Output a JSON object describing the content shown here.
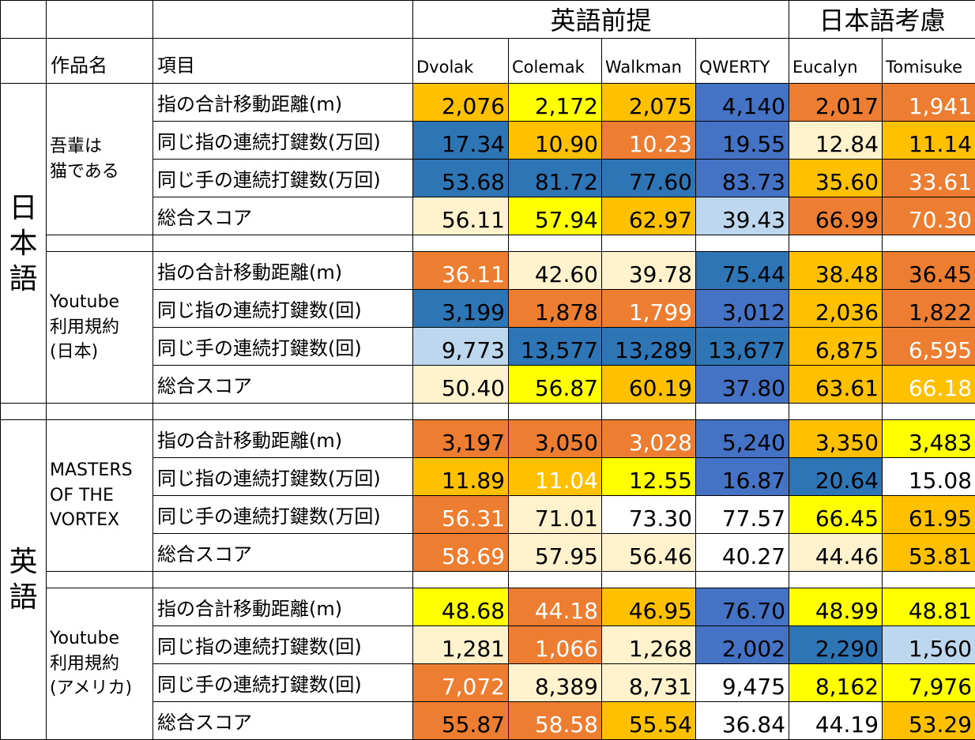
{
  "header": {
    "group_english": "英語前提",
    "group_japanese": "日本語考慮",
    "work_label": "作品名",
    "item_label": "項目",
    "layouts": [
      "Dvolak",
      "Colemak",
      "Walkman",
      "QWERTY",
      "Eucalyn",
      "Tomisuke"
    ]
  },
  "languages": {
    "japanese": "日本語",
    "english": "英語"
  },
  "sections": [
    {
      "work_lines": [
        "吾輩は",
        "猫である"
      ],
      "rows": [
        {
          "item": "指の合計移動距離(m)",
          "cells": [
            {
              "v": "2,076",
              "bg": "#ffc000",
              "fg": "#000000"
            },
            {
              "v": "2,172",
              "bg": "#ffff00",
              "fg": "#000000"
            },
            {
              "v": "2,075",
              "bg": "#ffc000",
              "fg": "#000000"
            },
            {
              "v": "4,140",
              "bg": "#4472c4",
              "fg": "#000000"
            },
            {
              "v": "2,017",
              "bg": "#ed7d31",
              "fg": "#000000"
            },
            {
              "v": "1,941",
              "bg": "#ed7d31",
              "fg": "#ffffff"
            }
          ]
        },
        {
          "item": "同じ指の連続打鍵数(万回)",
          "cells": [
            {
              "v": "17.34",
              "bg": "#2e75b6",
              "fg": "#000000"
            },
            {
              "v": "10.90",
              "bg": "#ffc000",
              "fg": "#000000"
            },
            {
              "v": "10.23",
              "bg": "#ed7d31",
              "fg": "#ffffff"
            },
            {
              "v": "19.55",
              "bg": "#4472c4",
              "fg": "#000000"
            },
            {
              "v": "12.84",
              "bg": "#fff2cc",
              "fg": "#000000"
            },
            {
              "v": "11.14",
              "bg": "#ffc000",
              "fg": "#000000"
            }
          ]
        },
        {
          "item": "同じ手の連続打鍵数(万回)",
          "cells": [
            {
              "v": "53.68",
              "bg": "#2e75b6",
              "fg": "#000000"
            },
            {
              "v": "81.72",
              "bg": "#2e75b6",
              "fg": "#000000"
            },
            {
              "v": "77.60",
              "bg": "#2e75b6",
              "fg": "#000000"
            },
            {
              "v": "83.73",
              "bg": "#4472c4",
              "fg": "#000000"
            },
            {
              "v": "35.60",
              "bg": "#ffc000",
              "fg": "#000000"
            },
            {
              "v": "33.61",
              "bg": "#ed7d31",
              "fg": "#ffffff"
            }
          ]
        },
        {
          "item": "総合スコア",
          "cells": [
            {
              "v": "56.11",
              "bg": "#fff2cc",
              "fg": "#000000"
            },
            {
              "v": "57.94",
              "bg": "#ffff00",
              "fg": "#000000"
            },
            {
              "v": "62.97",
              "bg": "#ffc000",
              "fg": "#000000"
            },
            {
              "v": "39.43",
              "bg": "#bdd7ee",
              "fg": "#000000"
            },
            {
              "v": "66.99",
              "bg": "#ed7d31",
              "fg": "#000000"
            },
            {
              "v": "70.30",
              "bg": "#ed7d31",
              "fg": "#ffffff"
            }
          ]
        }
      ]
    },
    {
      "work_lines": [
        "Youtube",
        "利用規約",
        "(日本)"
      ],
      "rows": [
        {
          "item": "指の合計移動距離(m)",
          "cells": [
            {
              "v": "36.11",
              "bg": "#ed7d31",
              "fg": "#ffffff"
            },
            {
              "v": "42.60",
              "bg": "#fff2cc",
              "fg": "#000000"
            },
            {
              "v": "39.78",
              "bg": "#fff2cc",
              "fg": "#000000"
            },
            {
              "v": "75.44",
              "bg": "#2e75b6",
              "fg": "#000000"
            },
            {
              "v": "38.48",
              "bg": "#ffc000",
              "fg": "#000000"
            },
            {
              "v": "36.45",
              "bg": "#ed7d31",
              "fg": "#000000"
            }
          ]
        },
        {
          "item": "同じ指の連続打鍵数(回)",
          "cells": [
            {
              "v": "3,199",
              "bg": "#2e75b6",
              "fg": "#000000"
            },
            {
              "v": "1,878",
              "bg": "#ed7d31",
              "fg": "#000000"
            },
            {
              "v": "1,799",
              "bg": "#ed7d31",
              "fg": "#ffffff"
            },
            {
              "v": "3,012",
              "bg": "#4472c4",
              "fg": "#000000"
            },
            {
              "v": "2,036",
              "bg": "#ffc000",
              "fg": "#000000"
            },
            {
              "v": "1,822",
              "bg": "#ed7d31",
              "fg": "#000000"
            }
          ]
        },
        {
          "item": "同じ手の連続打鍵数(回)",
          "cells": [
            {
              "v": "9,773",
              "bg": "#bdd7ee",
              "fg": "#000000"
            },
            {
              "v": "13,577",
              "bg": "#2e75b6",
              "fg": "#000000"
            },
            {
              "v": "13,289",
              "bg": "#2e75b6",
              "fg": "#000000"
            },
            {
              "v": "13,677",
              "bg": "#2e75b6",
              "fg": "#000000"
            },
            {
              "v": "6,875",
              "bg": "#ffc000",
              "fg": "#000000"
            },
            {
              "v": "6,595",
              "bg": "#ed7d31",
              "fg": "#ffffff"
            }
          ]
        },
        {
          "item": "総合スコア",
          "cells": [
            {
              "v": "50.40",
              "bg": "#fff2cc",
              "fg": "#000000"
            },
            {
              "v": "56.87",
              "bg": "#ffff00",
              "fg": "#000000"
            },
            {
              "v": "60.19",
              "bg": "#ffc000",
              "fg": "#000000"
            },
            {
              "v": "37.80",
              "bg": "#4472c4",
              "fg": "#000000"
            },
            {
              "v": "63.61",
              "bg": "#ffc000",
              "fg": "#000000"
            },
            {
              "v": "66.18",
              "bg": "#ffc000",
              "fg": "#ffffff"
            }
          ]
        }
      ]
    },
    {
      "work_lines": [
        "MASTERS",
        "OF THE",
        "VORTEX"
      ],
      "rows": [
        {
          "item": "指の合計移動距離(m)",
          "cells": [
            {
              "v": "3,197",
              "bg": "#ed7d31",
              "fg": "#000000"
            },
            {
              "v": "3,050",
              "bg": "#ed7d31",
              "fg": "#000000"
            },
            {
              "v": "3,028",
              "bg": "#ed7d31",
              "fg": "#ffffff"
            },
            {
              "v": "5,240",
              "bg": "#4472c4",
              "fg": "#000000"
            },
            {
              "v": "3,350",
              "bg": "#ffc000",
              "fg": "#000000"
            },
            {
              "v": "3,483",
              "bg": "#ffff00",
              "fg": "#000000"
            }
          ]
        },
        {
          "item": "同じ指の連続打鍵数(万回)",
          "cells": [
            {
              "v": "11.89",
              "bg": "#ffc000",
              "fg": "#000000"
            },
            {
              "v": "11.04",
              "bg": "#ffc000",
              "fg": "#ffffff"
            },
            {
              "v": "12.55",
              "bg": "#ffff00",
              "fg": "#000000"
            },
            {
              "v": "16.87",
              "bg": "#4472c4",
              "fg": "#000000"
            },
            {
              "v": "20.64",
              "bg": "#2e75b6",
              "fg": "#000000"
            },
            {
              "v": "15.08",
              "bg": "#ffffff",
              "fg": "#000000"
            }
          ]
        },
        {
          "item": "同じ手の連続打鍵数(万回)",
          "cells": [
            {
              "v": "56.31",
              "bg": "#ed7d31",
              "fg": "#ffffff"
            },
            {
              "v": "71.01",
              "bg": "#fff2cc",
              "fg": "#000000"
            },
            {
              "v": "73.30",
              "bg": "#ffffff",
              "fg": "#000000"
            },
            {
              "v": "77.57",
              "bg": "#ffffff",
              "fg": "#000000"
            },
            {
              "v": "66.45",
              "bg": "#ffff00",
              "fg": "#000000"
            },
            {
              "v": "61.95",
              "bg": "#ffc000",
              "fg": "#000000"
            }
          ]
        },
        {
          "item": "総合スコア",
          "cells": [
            {
              "v": "58.69",
              "bg": "#ed7d31",
              "fg": "#ffffff"
            },
            {
              "v": "57.95",
              "bg": "#fff2cc",
              "fg": "#000000"
            },
            {
              "v": "56.46",
              "bg": "#fff2cc",
              "fg": "#000000"
            },
            {
              "v": "40.27",
              "bg": "#ffffff",
              "fg": "#000000"
            },
            {
              "v": "44.46",
              "bg": "#fff2cc",
              "fg": "#000000"
            },
            {
              "v": "53.81",
              "bg": "#ffc000",
              "fg": "#000000"
            }
          ]
        }
      ]
    },
    {
      "work_lines": [
        "Youtube",
        "利用規約",
        "(アメリカ)"
      ],
      "rows": [
        {
          "item": "指の合計移動距離(m)",
          "cells": [
            {
              "v": "48.68",
              "bg": "#ffff00",
              "fg": "#000000"
            },
            {
              "v": "44.18",
              "bg": "#ed7d31",
              "fg": "#ffffff"
            },
            {
              "v": "46.95",
              "bg": "#ffc000",
              "fg": "#000000"
            },
            {
              "v": "76.70",
              "bg": "#4472c4",
              "fg": "#000000"
            },
            {
              "v": "48.99",
              "bg": "#ffff00",
              "fg": "#000000"
            },
            {
              "v": "48.81",
              "bg": "#ffff00",
              "fg": "#000000"
            }
          ]
        },
        {
          "item": "同じ指の連続打鍵数(回)",
          "cells": [
            {
              "v": "1,281",
              "bg": "#fff2cc",
              "fg": "#000000"
            },
            {
              "v": "1,066",
              "bg": "#ed7d31",
              "fg": "#ffffff"
            },
            {
              "v": "1,268",
              "bg": "#fff2cc",
              "fg": "#000000"
            },
            {
              "v": "2,002",
              "bg": "#4472c4",
              "fg": "#000000"
            },
            {
              "v": "2,290",
              "bg": "#2e75b6",
              "fg": "#000000"
            },
            {
              "v": "1,560",
              "bg": "#bdd7ee",
              "fg": "#000000"
            }
          ]
        },
        {
          "item": "同じ手の連続打鍵数(回)",
          "cells": [
            {
              "v": "7,072",
              "bg": "#ed7d31",
              "fg": "#ffffff"
            },
            {
              "v": "8,389",
              "bg": "#fff2cc",
              "fg": "#000000"
            },
            {
              "v": "8,731",
              "bg": "#fff2cc",
              "fg": "#000000"
            },
            {
              "v": "9,475",
              "bg": "#ffffff",
              "fg": "#000000"
            },
            {
              "v": "8,162",
              "bg": "#ffff00",
              "fg": "#000000"
            },
            {
              "v": "7,976",
              "bg": "#ffff00",
              "fg": "#000000"
            }
          ]
        },
        {
          "item": "総合スコア",
          "cells": [
            {
              "v": "55.87",
              "bg": "#ed7d31",
              "fg": "#000000"
            },
            {
              "v": "58.58",
              "bg": "#ed7d31",
              "fg": "#ffffff"
            },
            {
              "v": "55.54",
              "bg": "#ffc000",
              "fg": "#000000"
            },
            {
              "v": "36.84",
              "bg": "#ffffff",
              "fg": "#000000"
            },
            {
              "v": "44.19",
              "bg": "#ffffff",
              "fg": "#000000"
            },
            {
              "v": "53.29",
              "bg": "#ffc000",
              "fg": "#000000"
            }
          ]
        }
      ]
    }
  ]
}
